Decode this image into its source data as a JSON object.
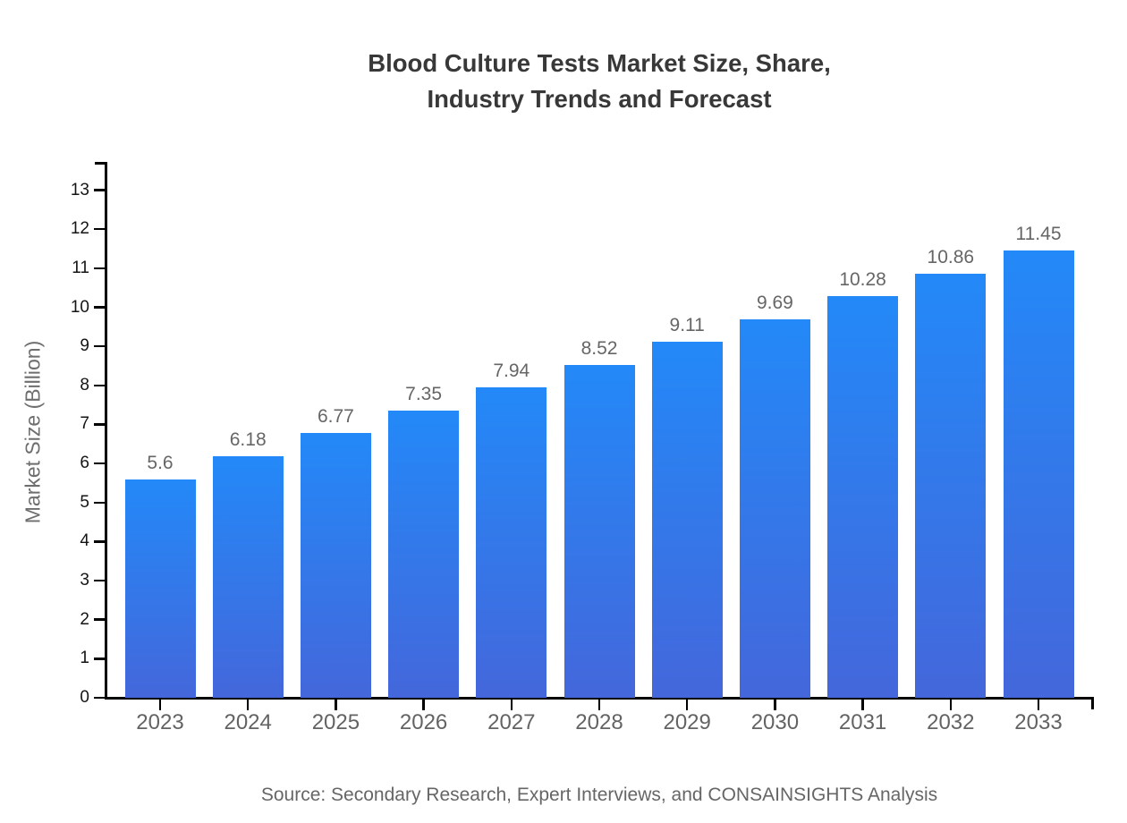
{
  "chart_data": {
    "type": "bar",
    "title": "Blood Culture Tests Market Size, Share, Industry Trends and Forecast",
    "title_lines": [
      "Blood Culture Tests Market Size, Share,",
      "Industry Trends and Forecast"
    ],
    "ylabel": "Market Size (Billion)",
    "xlabel": "",
    "categories": [
      "2023",
      "2024",
      "2025",
      "2026",
      "2027",
      "2028",
      "2029",
      "2030",
      "2031",
      "2032",
      "2033"
    ],
    "values": [
      5.6,
      6.18,
      6.77,
      7.35,
      7.94,
      8.52,
      9.11,
      9.69,
      10.28,
      10.86,
      11.45
    ],
    "value_labels": [
      "5.6",
      "6.18",
      "6.77",
      "7.35",
      "7.94",
      "8.52",
      "9.11",
      "9.69",
      "10.28",
      "10.86",
      "11.45"
    ],
    "y_ticks": [
      0,
      1,
      2,
      3,
      4,
      5,
      6,
      7,
      8,
      9,
      10,
      11,
      12,
      13
    ],
    "ylim": [
      0,
      13.7
    ],
    "grid": false,
    "legend": "none",
    "source": "Source: Secondary Research, Expert Interviews, and CONSAINSIGHTS Analysis",
    "colors": {
      "bar_gradient_top": "#2389F8",
      "bar_gradient_bottom": "#4467DB",
      "axis": "#000000",
      "title_text": "#383838",
      "y_tick_label": "#141414",
      "x_tick_label": "#636363",
      "value_label": "#666666",
      "ylabel_text": "#6E6E6E",
      "source_text": "#666666",
      "background": "#FFFFFF"
    }
  }
}
